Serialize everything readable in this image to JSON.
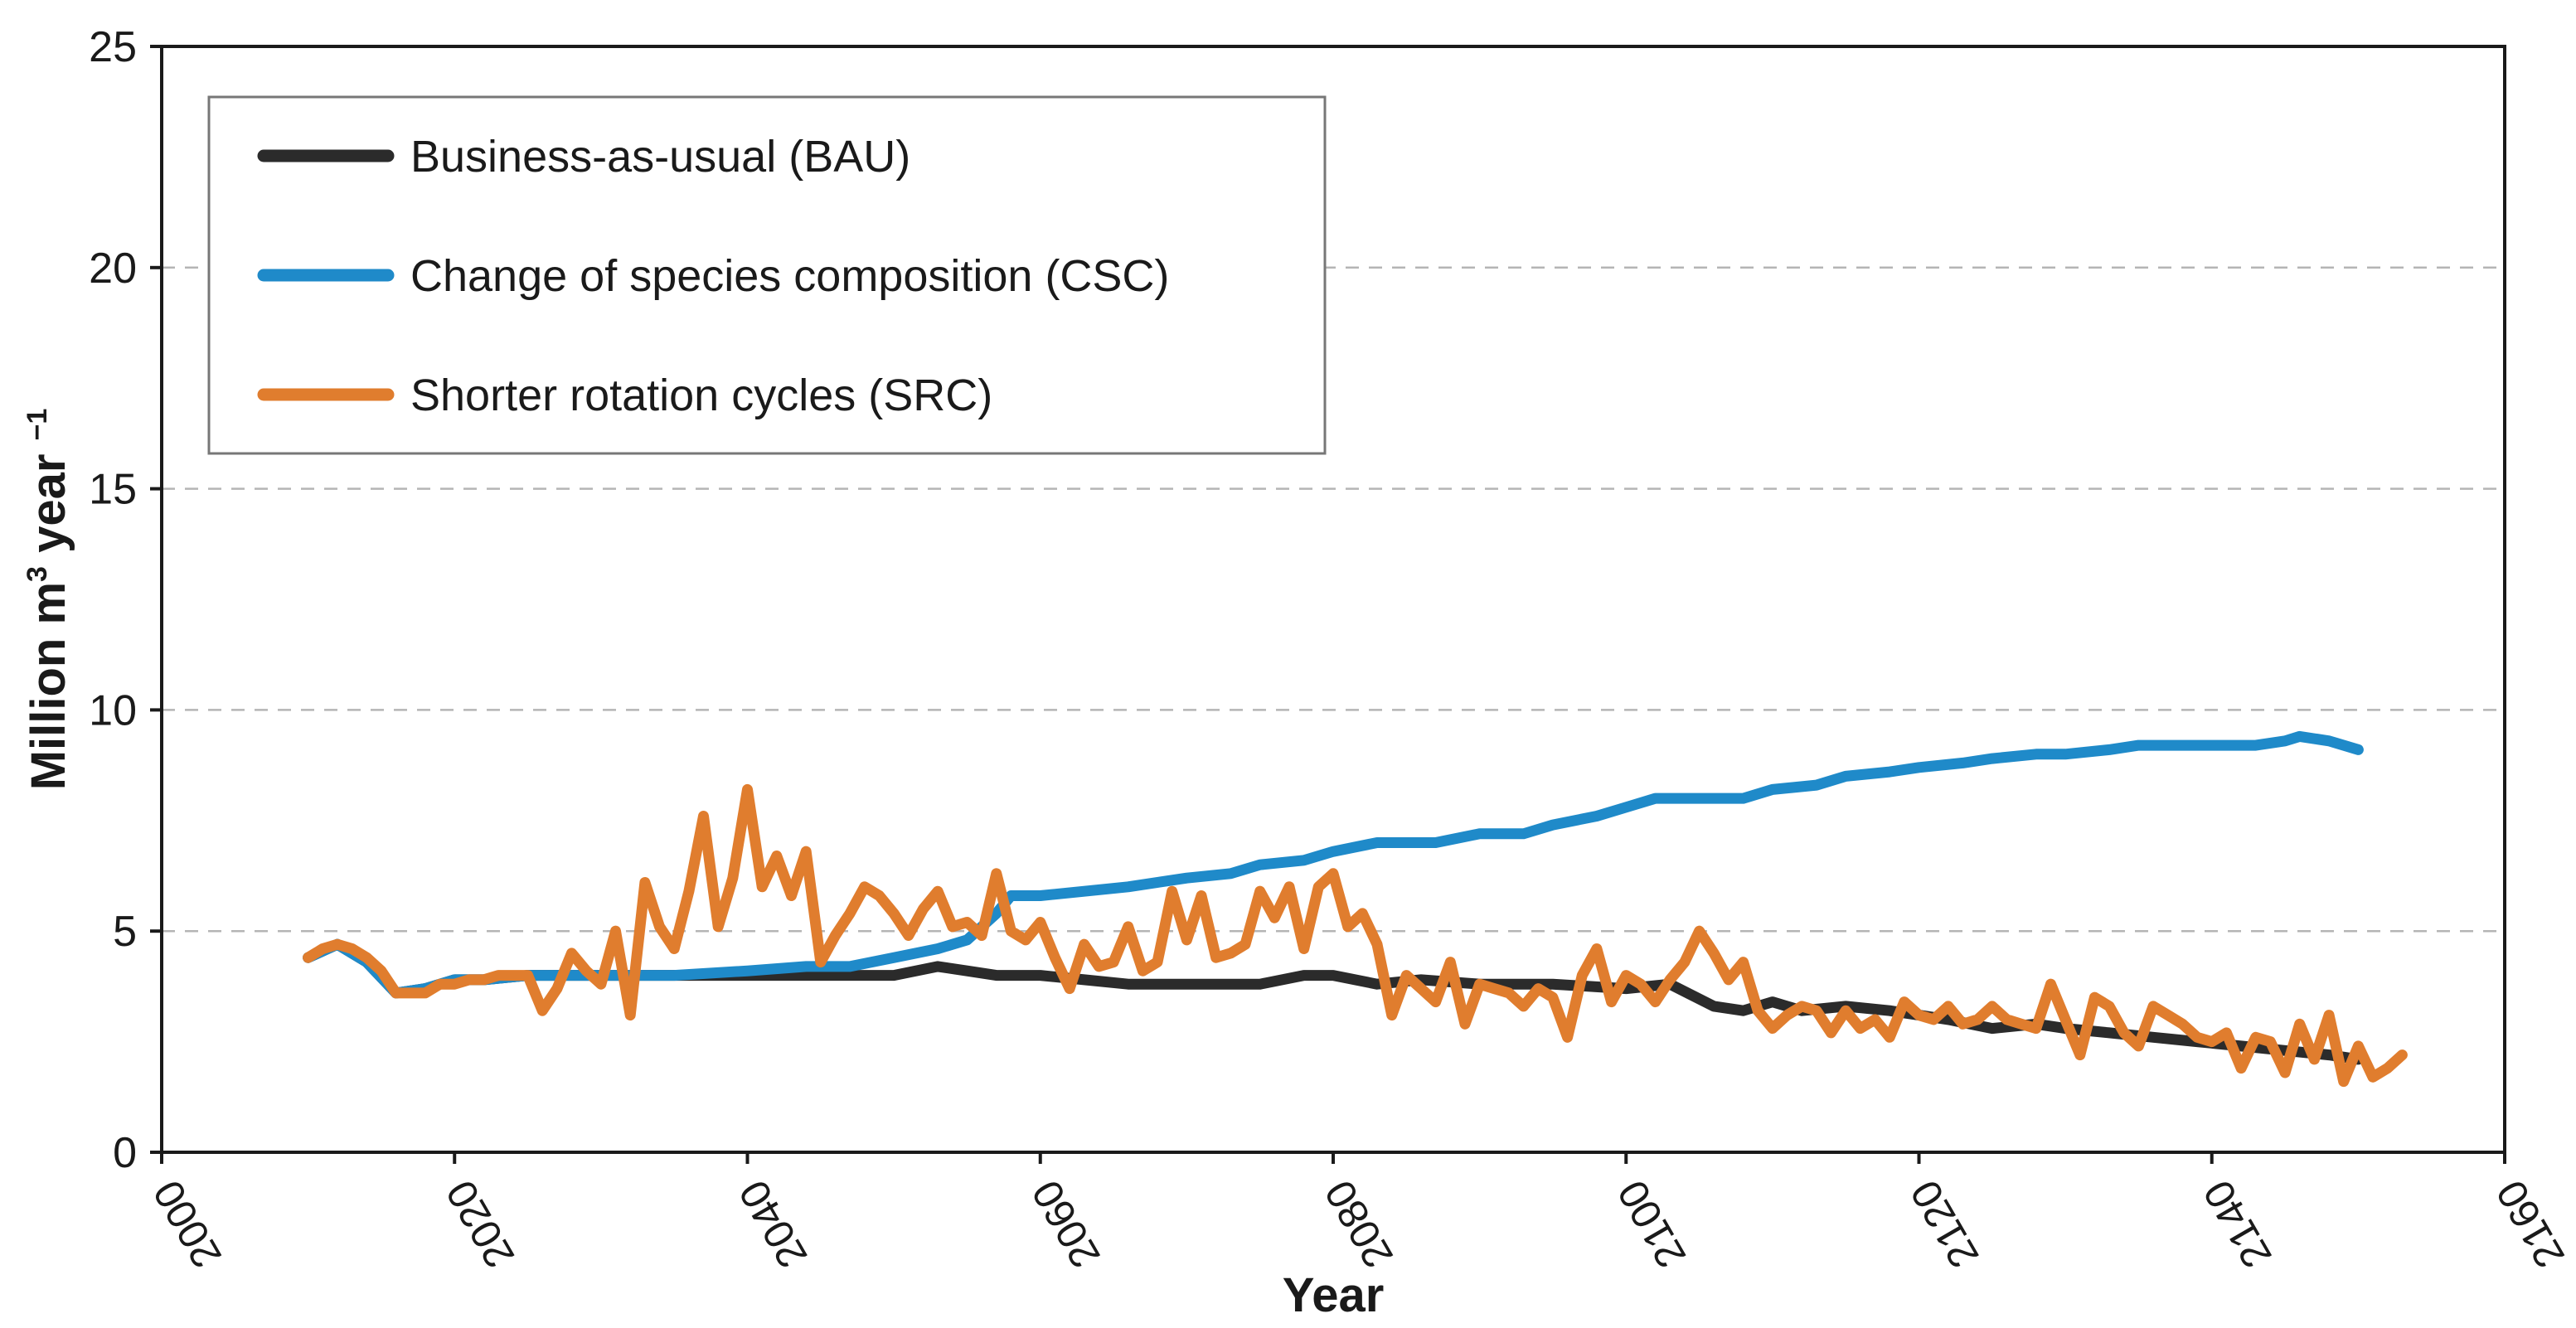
{
  "chart_data": {
    "type": "line",
    "title": "",
    "xlabel": "Year",
    "ylabel": {
      "prefix": "Million m",
      "sup1": "3",
      "mid": " year ",
      "sup2": "−1"
    },
    "xlim": [
      2000,
      2160
    ],
    "ylim": [
      0,
      25
    ],
    "x_ticks": [
      2000,
      2020,
      2040,
      2060,
      2080,
      2100,
      2120,
      2140,
      2160
    ],
    "y_ticks": [
      0,
      5,
      10,
      15,
      20,
      25
    ],
    "gridlines": "horizontal dashed at 5, 10, 15, 20",
    "legend_position": "top-left",
    "series": [
      {
        "name": "Business-as-usual (BAU)",
        "color": "#2b2b2b",
        "points": [
          [
            2010,
            4.4
          ],
          [
            2012,
            4.7
          ],
          [
            2014,
            4.3
          ],
          [
            2016,
            3.6
          ],
          [
            2018,
            3.7
          ],
          [
            2020,
            3.9
          ],
          [
            2022,
            3.9
          ],
          [
            2025,
            4.0
          ],
          [
            2030,
            4.0
          ],
          [
            2035,
            4.0
          ],
          [
            2040,
            4.0
          ],
          [
            2045,
            4.0
          ],
          [
            2050,
            4.0
          ],
          [
            2053,
            4.2
          ],
          [
            2055,
            4.1
          ],
          [
            2057,
            4.0
          ],
          [
            2060,
            4.0
          ],
          [
            2063,
            3.9
          ],
          [
            2066,
            3.8
          ],
          [
            2070,
            3.8
          ],
          [
            2075,
            3.8
          ],
          [
            2078,
            4.0
          ],
          [
            2080,
            4.0
          ],
          [
            2083,
            3.8
          ],
          [
            2086,
            3.9
          ],
          [
            2090,
            3.8
          ],
          [
            2095,
            3.8
          ],
          [
            2100,
            3.7
          ],
          [
            2103,
            3.8
          ],
          [
            2106,
            3.3
          ],
          [
            2108,
            3.2
          ],
          [
            2110,
            3.4
          ],
          [
            2112,
            3.2
          ],
          [
            2115,
            3.3
          ],
          [
            2118,
            3.2
          ],
          [
            2120,
            3.1
          ],
          [
            2122,
            3.0
          ],
          [
            2125,
            2.8
          ],
          [
            2128,
            2.9
          ],
          [
            2130,
            2.8
          ],
          [
            2133,
            2.7
          ],
          [
            2136,
            2.6
          ],
          [
            2139,
            2.5
          ],
          [
            2142,
            2.4
          ],
          [
            2145,
            2.3
          ],
          [
            2148,
            2.2
          ],
          [
            2150,
            2.1
          ]
        ]
      },
      {
        "name": "Change of species composition (CSC)",
        "color": "#1f8ac9",
        "points": [
          [
            2010,
            4.4
          ],
          [
            2012,
            4.7
          ],
          [
            2014,
            4.3
          ],
          [
            2016,
            3.6
          ],
          [
            2018,
            3.7
          ],
          [
            2020,
            3.9
          ],
          [
            2022,
            3.9
          ],
          [
            2025,
            4.0
          ],
          [
            2030,
            4.0
          ],
          [
            2035,
            4.0
          ],
          [
            2040,
            4.1
          ],
          [
            2044,
            4.2
          ],
          [
            2047,
            4.2
          ],
          [
            2050,
            4.4
          ],
          [
            2053,
            4.6
          ],
          [
            2055,
            4.8
          ],
          [
            2057,
            5.4
          ],
          [
            2058,
            5.8
          ],
          [
            2060,
            5.8
          ],
          [
            2063,
            5.9
          ],
          [
            2066,
            6.0
          ],
          [
            2070,
            6.2
          ],
          [
            2073,
            6.3
          ],
          [
            2075,
            6.5
          ],
          [
            2078,
            6.6
          ],
          [
            2080,
            6.8
          ],
          [
            2083,
            7.0
          ],
          [
            2085,
            7.0
          ],
          [
            2087,
            7.0
          ],
          [
            2090,
            7.2
          ],
          [
            2093,
            7.2
          ],
          [
            2095,
            7.4
          ],
          [
            2098,
            7.6
          ],
          [
            2100,
            7.8
          ],
          [
            2102,
            8.0
          ],
          [
            2105,
            8.0
          ],
          [
            2108,
            8.0
          ],
          [
            2110,
            8.2
          ],
          [
            2113,
            8.3
          ],
          [
            2115,
            8.5
          ],
          [
            2118,
            8.6
          ],
          [
            2120,
            8.7
          ],
          [
            2123,
            8.8
          ],
          [
            2125,
            8.9
          ],
          [
            2128,
            9.0
          ],
          [
            2130,
            9.0
          ],
          [
            2133,
            9.1
          ],
          [
            2135,
            9.2
          ],
          [
            2138,
            9.2
          ],
          [
            2140,
            9.2
          ],
          [
            2143,
            9.2
          ],
          [
            2145,
            9.3
          ],
          [
            2146,
            9.4
          ],
          [
            2148,
            9.3
          ],
          [
            2150,
            9.1
          ]
        ]
      },
      {
        "name": "Shorter rotation cycles (SRC)",
        "color": "#e07d2e",
        "points": [
          [
            2010,
            4.4
          ],
          [
            2011,
            4.6
          ],
          [
            2012,
            4.7
          ],
          [
            2013,
            4.6
          ],
          [
            2014,
            4.4
          ],
          [
            2015,
            4.1
          ],
          [
            2016,
            3.6
          ],
          [
            2017,
            3.6
          ],
          [
            2018,
            3.6
          ],
          [
            2019,
            3.8
          ],
          [
            2020,
            3.8
          ],
          [
            2021,
            3.9
          ],
          [
            2022,
            3.9
          ],
          [
            2023,
            4.0
          ],
          [
            2024,
            4.0
          ],
          [
            2025,
            4.0
          ],
          [
            2026,
            3.2
          ],
          [
            2027,
            3.7
          ],
          [
            2028,
            4.5
          ],
          [
            2029,
            4.1
          ],
          [
            2030,
            3.8
          ],
          [
            2031,
            5.0
          ],
          [
            2032,
            3.1
          ],
          [
            2033,
            6.1
          ],
          [
            2034,
            5.1
          ],
          [
            2035,
            4.6
          ],
          [
            2036,
            5.9
          ],
          [
            2037,
            7.6
          ],
          [
            2038,
            5.1
          ],
          [
            2039,
            6.2
          ],
          [
            2040,
            8.2
          ],
          [
            2041,
            6.0
          ],
          [
            2042,
            6.7
          ],
          [
            2043,
            5.8
          ],
          [
            2044,
            6.8
          ],
          [
            2045,
            4.3
          ],
          [
            2046,
            4.9
          ],
          [
            2047,
            5.4
          ],
          [
            2048,
            6.0
          ],
          [
            2049,
            5.8
          ],
          [
            2050,
            5.4
          ],
          [
            2051,
            4.9
          ],
          [
            2052,
            5.5
          ],
          [
            2053,
            5.9
          ],
          [
            2054,
            5.1
          ],
          [
            2055,
            5.2
          ],
          [
            2056,
            4.9
          ],
          [
            2057,
            6.3
          ],
          [
            2058,
            5.0
          ],
          [
            2059,
            4.8
          ],
          [
            2060,
            5.2
          ],
          [
            2061,
            4.4
          ],
          [
            2062,
            3.7
          ],
          [
            2063,
            4.7
          ],
          [
            2064,
            4.2
          ],
          [
            2065,
            4.3
          ],
          [
            2066,
            5.1
          ],
          [
            2067,
            4.1
          ],
          [
            2068,
            4.3
          ],
          [
            2069,
            5.9
          ],
          [
            2070,
            4.8
          ],
          [
            2071,
            5.8
          ],
          [
            2072,
            4.4
          ],
          [
            2073,
            4.5
          ],
          [
            2074,
            4.7
          ],
          [
            2075,
            5.9
          ],
          [
            2076,
            5.3
          ],
          [
            2077,
            6.0
          ],
          [
            2078,
            4.6
          ],
          [
            2079,
            6.0
          ],
          [
            2080,
            6.3
          ],
          [
            2081,
            5.1
          ],
          [
            2082,
            5.4
          ],
          [
            2083,
            4.7
          ],
          [
            2084,
            3.1
          ],
          [
            2085,
            4.0
          ],
          [
            2086,
            3.7
          ],
          [
            2087,
            3.4
          ],
          [
            2088,
            4.3
          ],
          [
            2089,
            2.9
          ],
          [
            2090,
            3.8
          ],
          [
            2091,
            3.7
          ],
          [
            2092,
            3.6
          ],
          [
            2093,
            3.3
          ],
          [
            2094,
            3.7
          ],
          [
            2095,
            3.5
          ],
          [
            2096,
            2.6
          ],
          [
            2097,
            4.0
          ],
          [
            2098,
            4.6
          ],
          [
            2099,
            3.4
          ],
          [
            2100,
            4.0
          ],
          [
            2101,
            3.8
          ],
          [
            2102,
            3.4
          ],
          [
            2103,
            3.9
          ],
          [
            2104,
            4.3
          ],
          [
            2105,
            5.0
          ],
          [
            2106,
            4.5
          ],
          [
            2107,
            3.9
          ],
          [
            2108,
            4.3
          ],
          [
            2109,
            3.2
          ],
          [
            2110,
            2.8
          ],
          [
            2111,
            3.1
          ],
          [
            2112,
            3.3
          ],
          [
            2113,
            3.2
          ],
          [
            2114,
            2.7
          ],
          [
            2115,
            3.2
          ],
          [
            2116,
            2.8
          ],
          [
            2117,
            3.0
          ],
          [
            2118,
            2.6
          ],
          [
            2119,
            3.4
          ],
          [
            2120,
            3.1
          ],
          [
            2121,
            3.0
          ],
          [
            2122,
            3.3
          ],
          [
            2123,
            2.9
          ],
          [
            2124,
            3.0
          ],
          [
            2125,
            3.3
          ],
          [
            2126,
            3.0
          ],
          [
            2127,
            2.9
          ],
          [
            2128,
            2.8
          ],
          [
            2129,
            3.8
          ],
          [
            2130,
            3.0
          ],
          [
            2131,
            2.2
          ],
          [
            2132,
            3.5
          ],
          [
            2133,
            3.3
          ],
          [
            2134,
            2.7
          ],
          [
            2135,
            2.4
          ],
          [
            2136,
            3.3
          ],
          [
            2137,
            3.1
          ],
          [
            2138,
            2.9
          ],
          [
            2139,
            2.6
          ],
          [
            2140,
            2.5
          ],
          [
            2141,
            2.7
          ],
          [
            2142,
            1.9
          ],
          [
            2143,
            2.6
          ],
          [
            2144,
            2.5
          ],
          [
            2145,
            1.8
          ],
          [
            2146,
            2.9
          ],
          [
            2147,
            2.1
          ],
          [
            2148,
            3.1
          ],
          [
            2149,
            1.6
          ],
          [
            2150,
            2.4
          ],
          [
            2151,
            1.7
          ],
          [
            2152,
            1.9
          ],
          [
            2153,
            2.2
          ]
        ]
      }
    ]
  }
}
